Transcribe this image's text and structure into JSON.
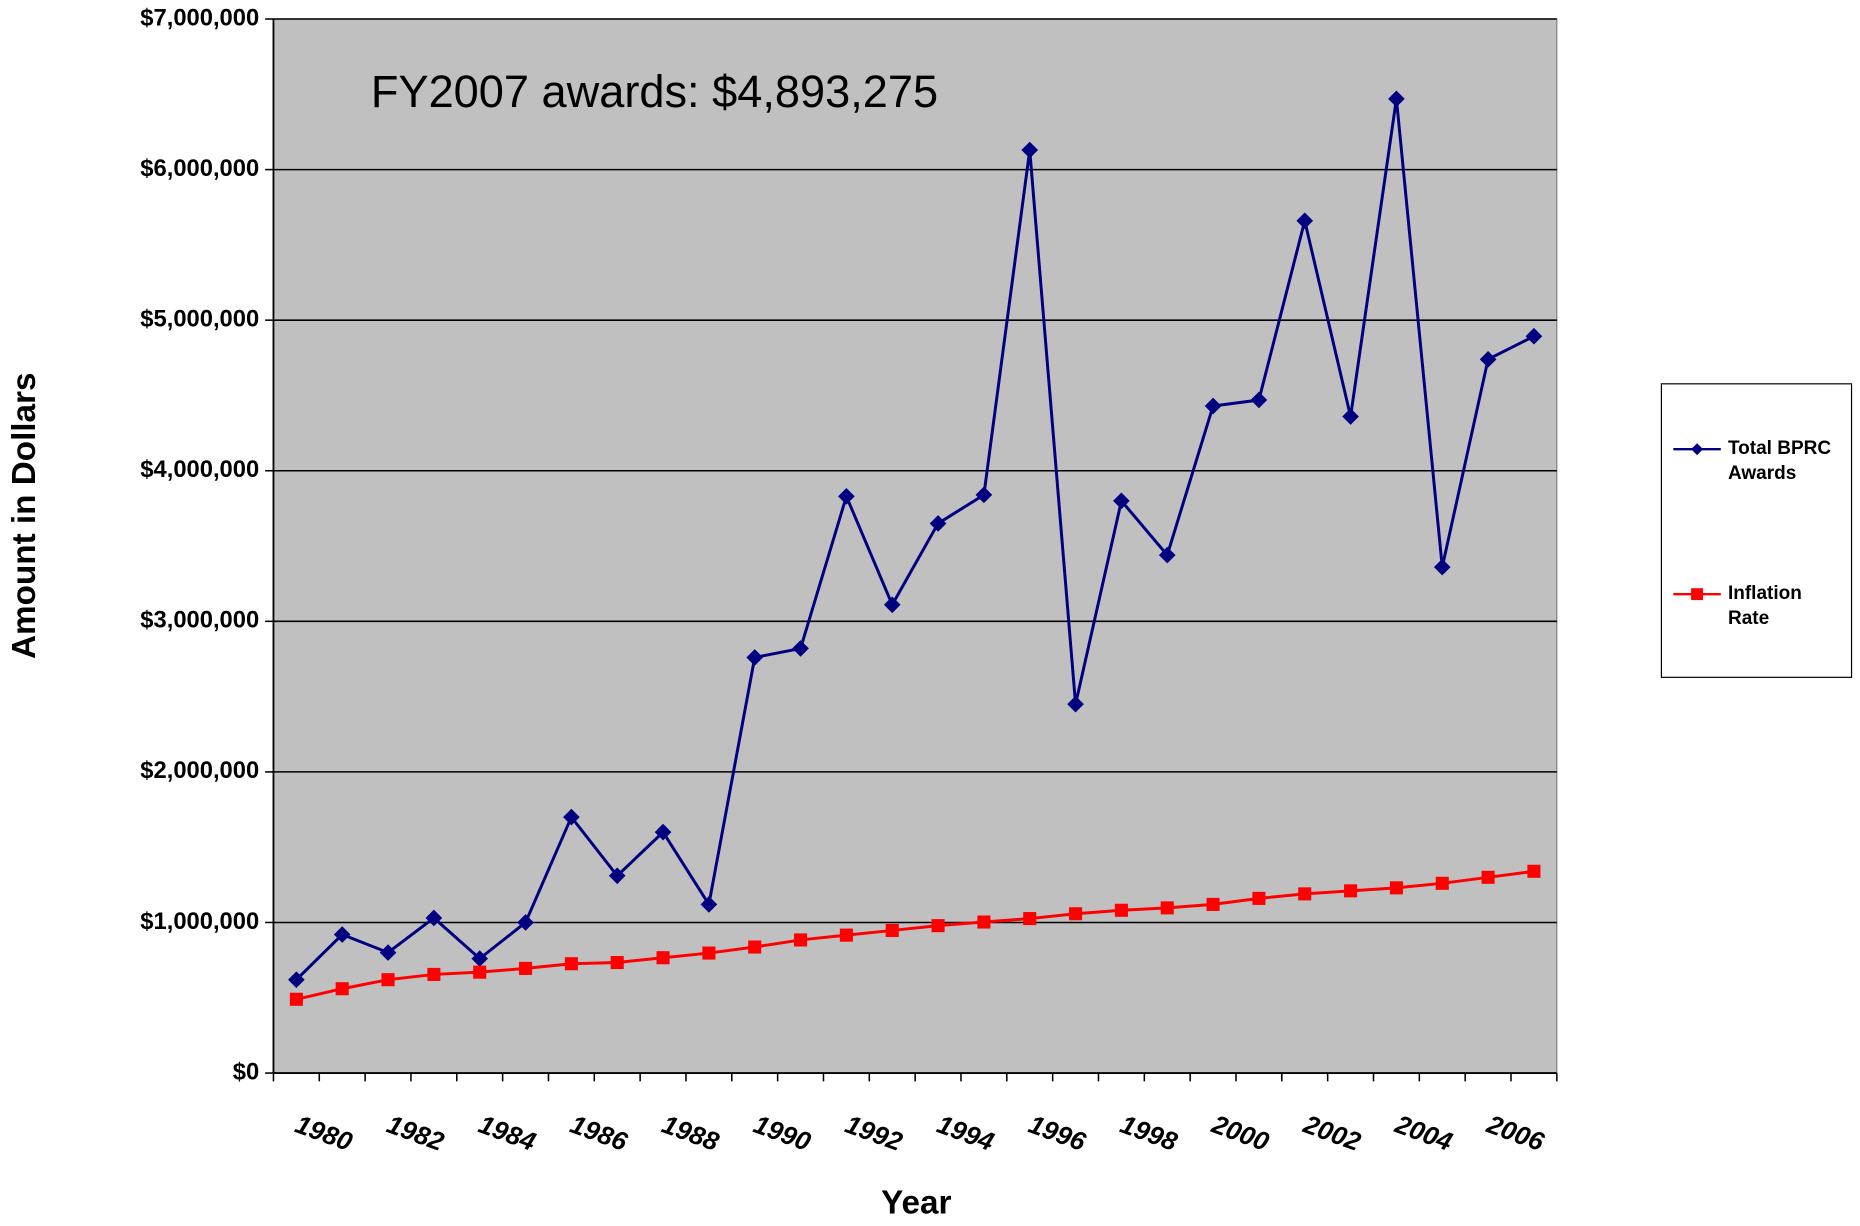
{
  "chart_data": {
    "type": "line",
    "annotation": "FY2007 awards: $4,893,275",
    "x_label": "Year",
    "y_label": "Amount in Dollars",
    "categories": [
      null,
      "1980",
      null,
      "1982",
      null,
      "1984",
      null,
      "1986",
      null,
      "1988",
      null,
      "1990",
      null,
      "1992",
      null,
      "1994",
      null,
      "1996",
      null,
      "1998",
      null,
      "2000",
      null,
      "2002",
      null,
      "2004",
      null,
      "2006"
    ],
    "series": [
      {
        "name": "Total BPRC Awards",
        "color": "#000080",
        "marker": "diamond",
        "values": [
          620000,
          920000,
          800000,
          1030000,
          760000,
          1000000,
          1700000,
          1310000,
          1600000,
          1120000,
          2760000,
          2820000,
          3830000,
          3110000,
          3650000,
          3840000,
          6130000,
          2450000,
          3800000,
          3440000,
          4430000,
          4470000,
          5660000,
          4360000,
          6470000,
          3360000,
          4740000,
          4893275
        ]
      },
      {
        "name": "Inflation Rate",
        "color": "#ff0000",
        "marker": "square",
        "values": [
          490000,
          560000,
          620000,
          655000,
          670000,
          695000,
          726000,
          734000,
          766000,
          797000,
          837000,
          884000,
          916000,
          947000,
          979000,
          1003000,
          1026000,
          1058000,
          1081000,
          1097000,
          1120000,
          1160000,
          1190000,
          1210000,
          1230000,
          1260000,
          1300000,
          1340000
        ]
      }
    ],
    "ylim": [
      0,
      7000000
    ],
    "yticks": [
      {
        "value": 0,
        "label": "$0"
      },
      {
        "value": 1000000,
        "label": "$1,000,000"
      },
      {
        "value": 2000000,
        "label": "$2,000,000"
      },
      {
        "value": 3000000,
        "label": "$3,000,000"
      },
      {
        "value": 4000000,
        "label": "$4,000,000"
      },
      {
        "value": 5000000,
        "label": "$5,000,000"
      },
      {
        "value": 6000000,
        "label": "$6,000,000"
      },
      {
        "value": 7000000,
        "label": "$7,000,000"
      }
    ],
    "grid": true,
    "plot_background": "#c0c0c0",
    "legend": "right"
  }
}
